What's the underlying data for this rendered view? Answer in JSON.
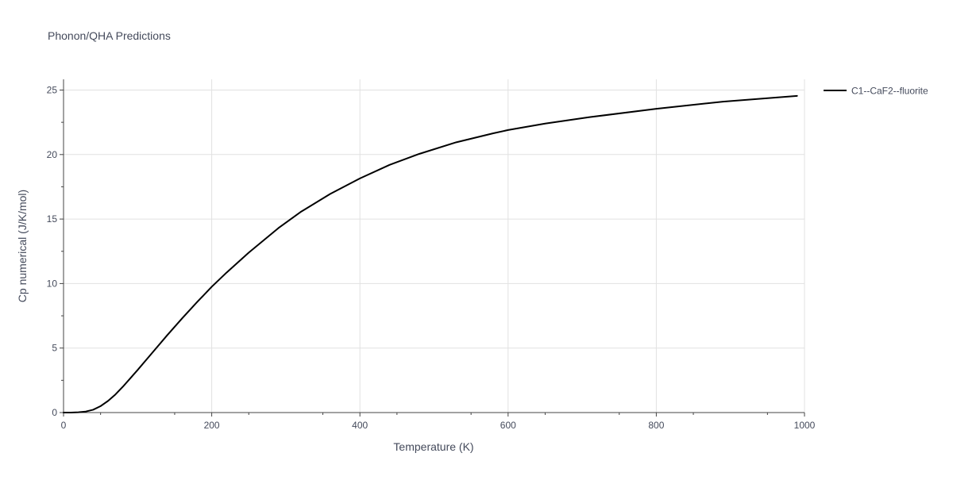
{
  "chart_data": {
    "type": "line",
    "title": "Phonon/QHA Predictions",
    "xlabel": "Temperature (K)",
    "ylabel": "Cp numerical (J/K/mol)",
    "xlim": [
      0,
      1000
    ],
    "ylim": [
      0,
      26
    ],
    "xticks": [
      0,
      200,
      400,
      600,
      800,
      1000
    ],
    "yticks": [
      0,
      5,
      10,
      15,
      20,
      25
    ],
    "xtick_labels": [
      "0",
      "200",
      "400",
      "600",
      "800",
      "1000"
    ],
    "ytick_labels": [
      "0",
      "5",
      "10",
      "15",
      "20",
      "25"
    ],
    "grid": true,
    "legend_position": "top-right",
    "series": [
      {
        "name": "C1--CaF2--fluorite",
        "color": "#000000",
        "x": [
          0,
          10,
          20,
          30,
          40,
          50,
          60,
          70,
          80,
          90,
          100,
          120,
          140,
          160,
          180,
          200,
          220,
          250,
          290,
          320,
          360,
          400,
          440,
          480,
          530,
          580,
          600,
          650,
          710,
          800,
          890,
          990
        ],
        "y": [
          0,
          0.0,
          0.02,
          0.08,
          0.22,
          0.5,
          0.9,
          1.4,
          2.0,
          2.65,
          3.3,
          4.65,
          6.0,
          7.3,
          8.55,
          9.75,
          10.85,
          12.4,
          14.3,
          15.55,
          16.95,
          18.15,
          19.2,
          20.05,
          20.95,
          21.65,
          21.9,
          22.4,
          22.9,
          23.55,
          24.1,
          24.55
        ]
      }
    ]
  }
}
